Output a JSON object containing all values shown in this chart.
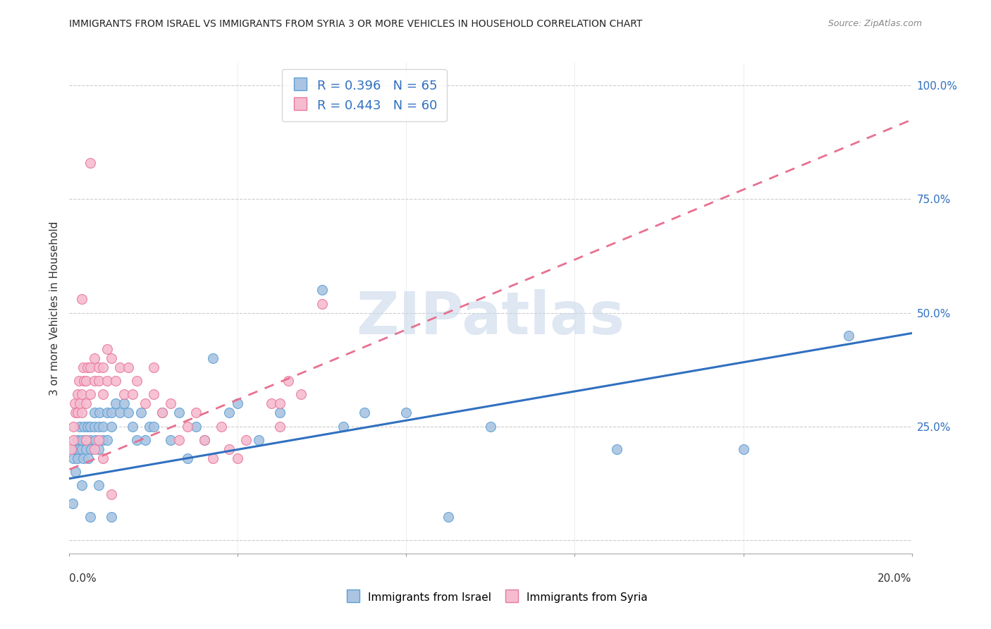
{
  "title": "IMMIGRANTS FROM ISRAEL VS IMMIGRANTS FROM SYRIA 3 OR MORE VEHICLES IN HOUSEHOLD CORRELATION CHART",
  "source": "Source: ZipAtlas.com",
  "ylabel": "3 or more Vehicles in Household",
  "xmin": 0.0,
  "xmax": 0.2,
  "ymin": -0.03,
  "ymax": 1.05,
  "israel_color": "#aac4e2",
  "israel_edge_color": "#5a9fd4",
  "syria_color": "#f5bcd0",
  "syria_edge_color": "#e8789a",
  "israel_line_color": "#3070c0",
  "syria_line_color": "#e87090",
  "watermark": "ZIPatlas",
  "watermark_color": "#c8d8ea",
  "israel_intercept": 0.135,
  "israel_slope": 1.6,
  "syria_intercept": 0.155,
  "syria_slope": 3.85,
  "israel_x": [
    0.0008,
    0.001,
    0.0012,
    0.0015,
    0.002,
    0.002,
    0.0022,
    0.0025,
    0.003,
    0.003,
    0.0032,
    0.0035,
    0.004,
    0.004,
    0.0042,
    0.0045,
    0.005,
    0.005,
    0.0052,
    0.006,
    0.006,
    0.0062,
    0.007,
    0.007,
    0.0072,
    0.008,
    0.008,
    0.009,
    0.009,
    0.01,
    0.01,
    0.011,
    0.012,
    0.013,
    0.014,
    0.015,
    0.016,
    0.017,
    0.018,
    0.019,
    0.02,
    0.022,
    0.024,
    0.026,
    0.028,
    0.03,
    0.032,
    0.034,
    0.038,
    0.04,
    0.045,
    0.05,
    0.06,
    0.065,
    0.07,
    0.08,
    0.09,
    0.1,
    0.13,
    0.16,
    0.185,
    0.003,
    0.005,
    0.007,
    0.01
  ],
  "israel_y": [
    0.08,
    0.18,
    0.2,
    0.15,
    0.22,
    0.18,
    0.2,
    0.25,
    0.2,
    0.22,
    0.18,
    0.25,
    0.22,
    0.2,
    0.25,
    0.18,
    0.25,
    0.22,
    0.2,
    0.25,
    0.28,
    0.22,
    0.25,
    0.2,
    0.28,
    0.22,
    0.25,
    0.28,
    0.22,
    0.25,
    0.28,
    0.3,
    0.28,
    0.3,
    0.28,
    0.25,
    0.22,
    0.28,
    0.22,
    0.25,
    0.25,
    0.28,
    0.22,
    0.28,
    0.18,
    0.25,
    0.22,
    0.4,
    0.28,
    0.3,
    0.22,
    0.28,
    0.55,
    0.25,
    0.28,
    0.28,
    0.05,
    0.25,
    0.2,
    0.2,
    0.45,
    0.12,
    0.05,
    0.12,
    0.05
  ],
  "syria_x": [
    0.0005,
    0.001,
    0.001,
    0.0012,
    0.0015,
    0.002,
    0.002,
    0.0022,
    0.0025,
    0.003,
    0.003,
    0.0032,
    0.0035,
    0.004,
    0.004,
    0.0042,
    0.005,
    0.005,
    0.006,
    0.006,
    0.007,
    0.007,
    0.008,
    0.008,
    0.009,
    0.009,
    0.01,
    0.011,
    0.012,
    0.013,
    0.014,
    0.015,
    0.016,
    0.018,
    0.02,
    0.022,
    0.024,
    0.026,
    0.028,
    0.03,
    0.032,
    0.034,
    0.036,
    0.038,
    0.04,
    0.042,
    0.048,
    0.05,
    0.052,
    0.055,
    0.06,
    0.01,
    0.003,
    0.004,
    0.005,
    0.006,
    0.007,
    0.008,
    0.05,
    0.02
  ],
  "syria_y": [
    0.2,
    0.25,
    0.22,
    0.3,
    0.28,
    0.32,
    0.28,
    0.35,
    0.3,
    0.32,
    0.28,
    0.38,
    0.35,
    0.3,
    0.35,
    0.38,
    0.32,
    0.38,
    0.35,
    0.4,
    0.38,
    0.35,
    0.32,
    0.38,
    0.35,
    0.42,
    0.4,
    0.35,
    0.38,
    0.32,
    0.38,
    0.32,
    0.35,
    0.3,
    0.32,
    0.28,
    0.3,
    0.22,
    0.25,
    0.28,
    0.22,
    0.18,
    0.25,
    0.2,
    0.18,
    0.22,
    0.3,
    0.25,
    0.35,
    0.32,
    0.52,
    0.1,
    0.53,
    0.22,
    0.83,
    0.2,
    0.22,
    0.18,
    0.3,
    0.38
  ]
}
